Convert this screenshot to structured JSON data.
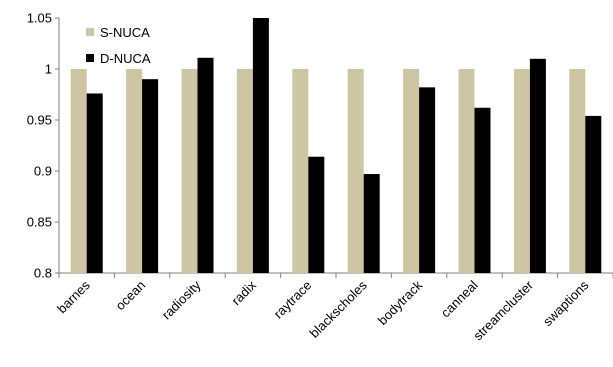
{
  "chart_data": {
    "type": "bar",
    "categories": [
      "barnes",
      "ocean",
      "radiosity",
      "radix",
      "raytrace",
      "blackscholes",
      "bodytrack",
      "canneal",
      "streamcluster",
      "swaptions"
    ],
    "series": [
      {
        "name": "S-NUCA",
        "color": "#cdc6a5",
        "values": [
          1.0,
          1.0,
          1.0,
          1.0,
          1.0,
          1.0,
          1.0,
          1.0,
          1.0,
          1.0
        ]
      },
      {
        "name": "D-NUCA",
        "color": "#000000",
        "values": [
          0.976,
          0.99,
          1.011,
          1.05,
          0.914,
          0.897,
          0.982,
          0.962,
          1.01,
          0.954
        ]
      }
    ],
    "yticks": [
      "0.8",
      "0.85",
      "0.9",
      "0.95",
      "1",
      "1.05"
    ],
    "ylim": [
      0.8,
      1.05
    ],
    "grid": false,
    "legend_position": "top-left",
    "title": "",
    "xlabel": "",
    "ylabel": ""
  }
}
